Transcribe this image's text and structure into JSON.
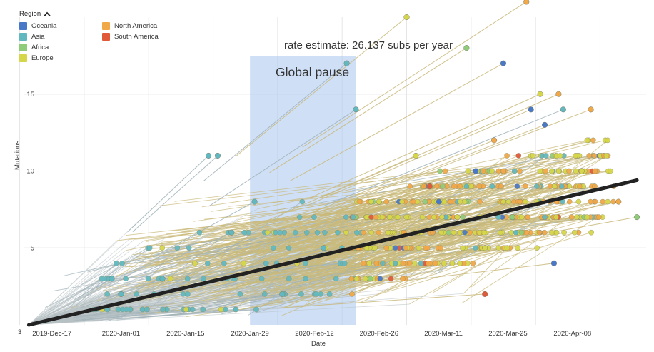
{
  "legend": {
    "title": "Region",
    "items": [
      {
        "label": "Oceania",
        "color": "#4a78c8"
      },
      {
        "label": "Asia",
        "color": "#62b8bf"
      },
      {
        "label": "Africa",
        "color": "#8fcc7a"
      },
      {
        "label": "Europe",
        "color": "#d6d64a"
      },
      {
        "label": "North America",
        "color": "#f0a848"
      },
      {
        "label": "South America",
        "color": "#e05a3a"
      }
    ]
  },
  "annotation": {
    "rate_text": "rate estimate: 26.137 subs per year",
    "pause_text": "Global pause",
    "pause_start": "2020-Jan-29",
    "pause_end": "2020-Feb-21"
  },
  "chart_data": {
    "type": "scatter",
    "xlabel": "Date",
    "ylabel": "Mutations",
    "x_ticks": [
      "2019-Dec-17",
      "2020-Jan-01",
      "2020-Jan-15",
      "2020-Jan-29",
      "2020-Feb-12",
      "2020-Feb-26",
      "2020-Mar-11",
      "2020-Mar-25",
      "2020-Apr-08"
    ],
    "y_ticks": [
      5,
      10,
      15
    ],
    "y_corner_label": "3",
    "xlim": [
      "2019-Dec-11",
      "2020-Apr-24"
    ],
    "ylim": [
      0,
      20
    ],
    "grid": true,
    "regression": {
      "from": [
        "2019-Dec-12",
        0
      ],
      "to": [
        "2020-Apr-22",
        9.4
      ],
      "label": "rate estimate: 26.137 subs per year"
    },
    "series": [
      {
        "name": "Oceania",
        "points": [
          [
            "2020-Mar-10",
            8
          ],
          [
            "2020-Mar-18",
            10
          ],
          [
            "2020-Mar-24",
            17
          ],
          [
            "2020-Mar-30",
            14
          ],
          [
            "2020-Apr-02",
            13
          ],
          [
            "2020-Apr-04",
            4
          ]
        ]
      },
      {
        "name": "Asia",
        "points": [
          [
            "2019-Dec-30",
            3
          ],
          [
            "2020-Jan-01",
            2
          ],
          [
            "2020-Jan-10",
            3
          ],
          [
            "2020-Jan-20",
            11
          ],
          [
            "2020-Jan-22",
            11
          ],
          [
            "2020-Jan-25",
            6
          ],
          [
            "2020-Jan-30",
            8
          ],
          [
            "2020-Feb-05",
            2
          ],
          [
            "2020-Feb-19",
            17
          ],
          [
            "2020-Feb-21",
            14
          ],
          [
            "2020-Feb-14",
            5
          ],
          [
            "2020-Apr-06",
            14
          ]
        ]
      },
      {
        "name": "Africa",
        "points": [
          [
            "2020-Mar-16",
            18
          ],
          [
            "2020-Mar-26",
            7
          ],
          [
            "2020-Apr-22",
            7
          ]
        ]
      },
      {
        "name": "Europe",
        "points": [
          [
            "2020-Feb-26",
            8
          ],
          [
            "2020-Mar-03",
            20
          ],
          [
            "2020-Mar-05",
            11
          ],
          [
            "2020-Mar-14",
            7
          ],
          [
            "2020-Mar-20",
            5
          ],
          [
            "2020-Apr-01",
            15
          ],
          [
            "2020-Apr-10",
            10
          ]
        ]
      },
      {
        "name": "North America",
        "points": [
          [
            "2020-Mar-08",
            9
          ],
          [
            "2020-Mar-22",
            12
          ],
          [
            "2020-Mar-29",
            21
          ],
          [
            "2020-Apr-05",
            15
          ],
          [
            "2020-Apr-12",
            14
          ],
          [
            "2020-Apr-18",
            8
          ]
        ]
      },
      {
        "name": "South America",
        "points": [
          [
            "2020-Mar-08",
            9
          ],
          [
            "2020-Mar-20",
            2
          ]
        ]
      }
    ]
  }
}
